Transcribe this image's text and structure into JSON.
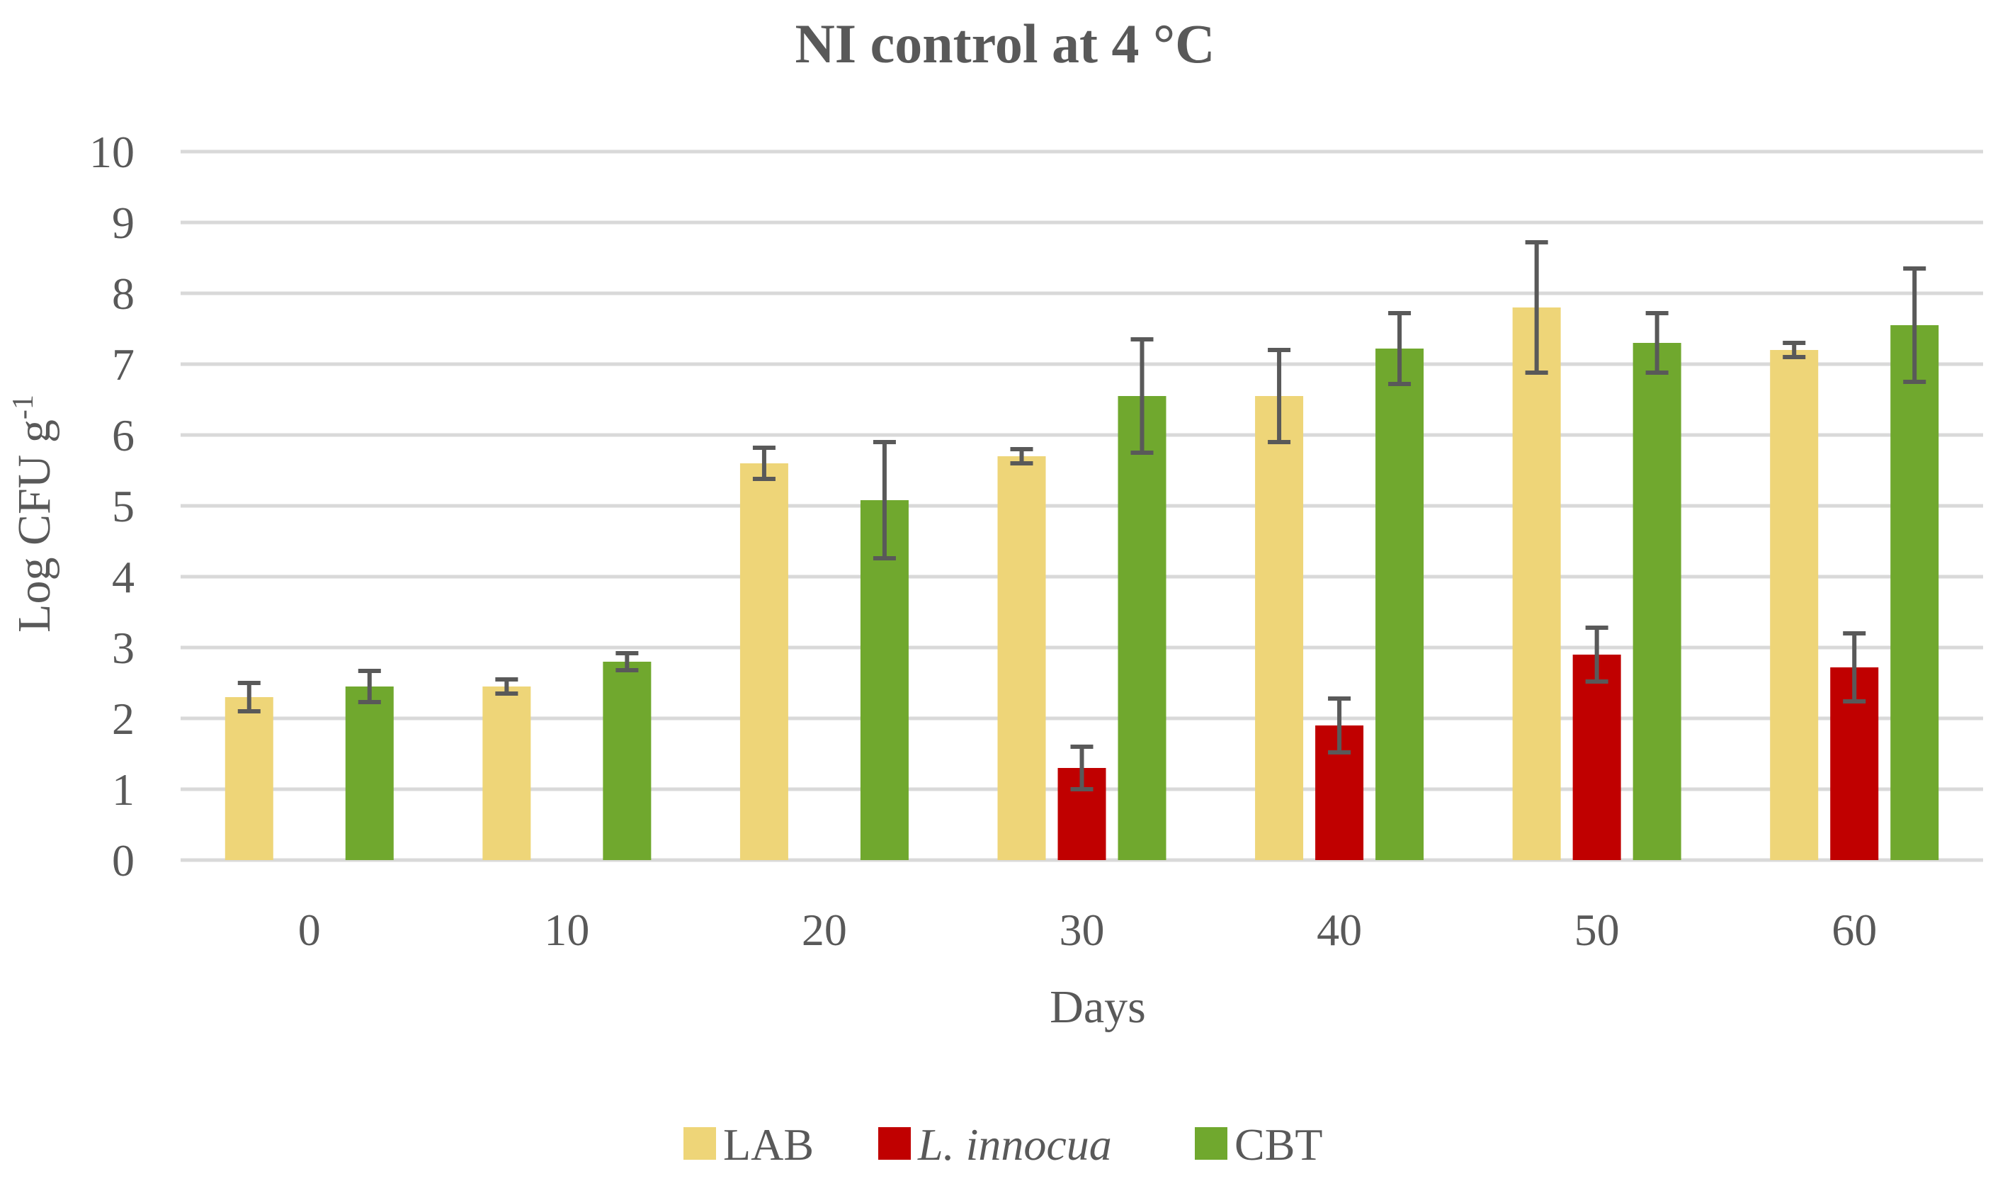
{
  "chart_data": {
    "type": "bar",
    "title": "NI control at 4 °C",
    "xlabel": "Days",
    "ylabel": "Log CFU g",
    "ylabel_sup": "-1",
    "ylim": [
      0,
      10
    ],
    "yticks": [
      "0",
      "1",
      "2",
      "3",
      "4",
      "5",
      "6",
      "7",
      "8",
      "9",
      "10"
    ],
    "categories": [
      "0",
      "10",
      "20",
      "30",
      "40",
      "50",
      "60"
    ],
    "legend_position": "bottom",
    "grid": true,
    "series": [
      {
        "name": "LAB",
        "italic": false,
        "color": "#eed578",
        "values": [
          2.3,
          2.45,
          5.6,
          5.7,
          6.55,
          7.8,
          7.2
        ],
        "errors": [
          0.2,
          0.1,
          0.22,
          0.1,
          0.65,
          0.92,
          0.1
        ]
      },
      {
        "name": "L. innocua",
        "italic": true,
        "color": "#c00000",
        "values": [
          null,
          null,
          null,
          1.3,
          1.9,
          2.9,
          2.72
        ],
        "errors": [
          null,
          null,
          null,
          0.3,
          0.38,
          0.38,
          0.48
        ]
      },
      {
        "name": "CBT",
        "italic": false,
        "color": "#70a82e",
        "values": [
          2.45,
          2.8,
          5.08,
          6.55,
          7.22,
          7.3,
          7.55
        ],
        "errors": [
          0.22,
          0.12,
          0.82,
          0.8,
          0.5,
          0.42,
          0.8
        ]
      }
    ]
  }
}
